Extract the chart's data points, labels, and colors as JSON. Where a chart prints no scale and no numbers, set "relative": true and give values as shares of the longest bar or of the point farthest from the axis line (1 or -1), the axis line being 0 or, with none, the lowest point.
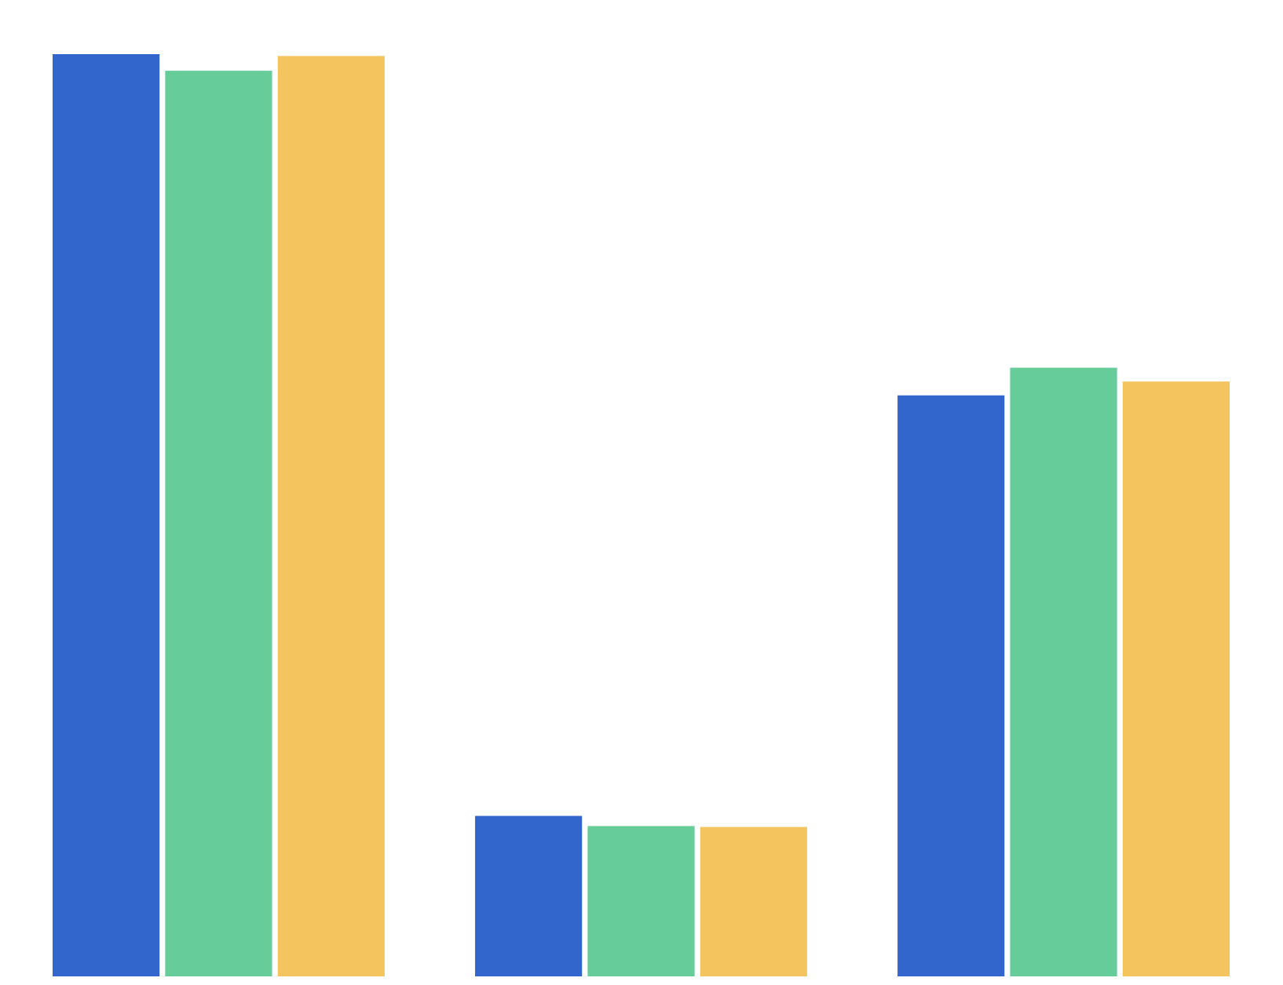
{
  "chart_data": {
    "type": "bar",
    "relative": true,
    "categories": [
      null,
      null,
      null
    ],
    "series": [
      {
        "color": "#3366cc",
        "values": [
          1,
          0.174,
          0.63
        ]
      },
      {
        "color": "#66cc99",
        "values": [
          0.982,
          0.163,
          0.66
        ]
      },
      {
        "color": "#f4c45e",
        "values": [
          0.998,
          0.162,
          0.645
        ]
      }
    ]
  }
}
